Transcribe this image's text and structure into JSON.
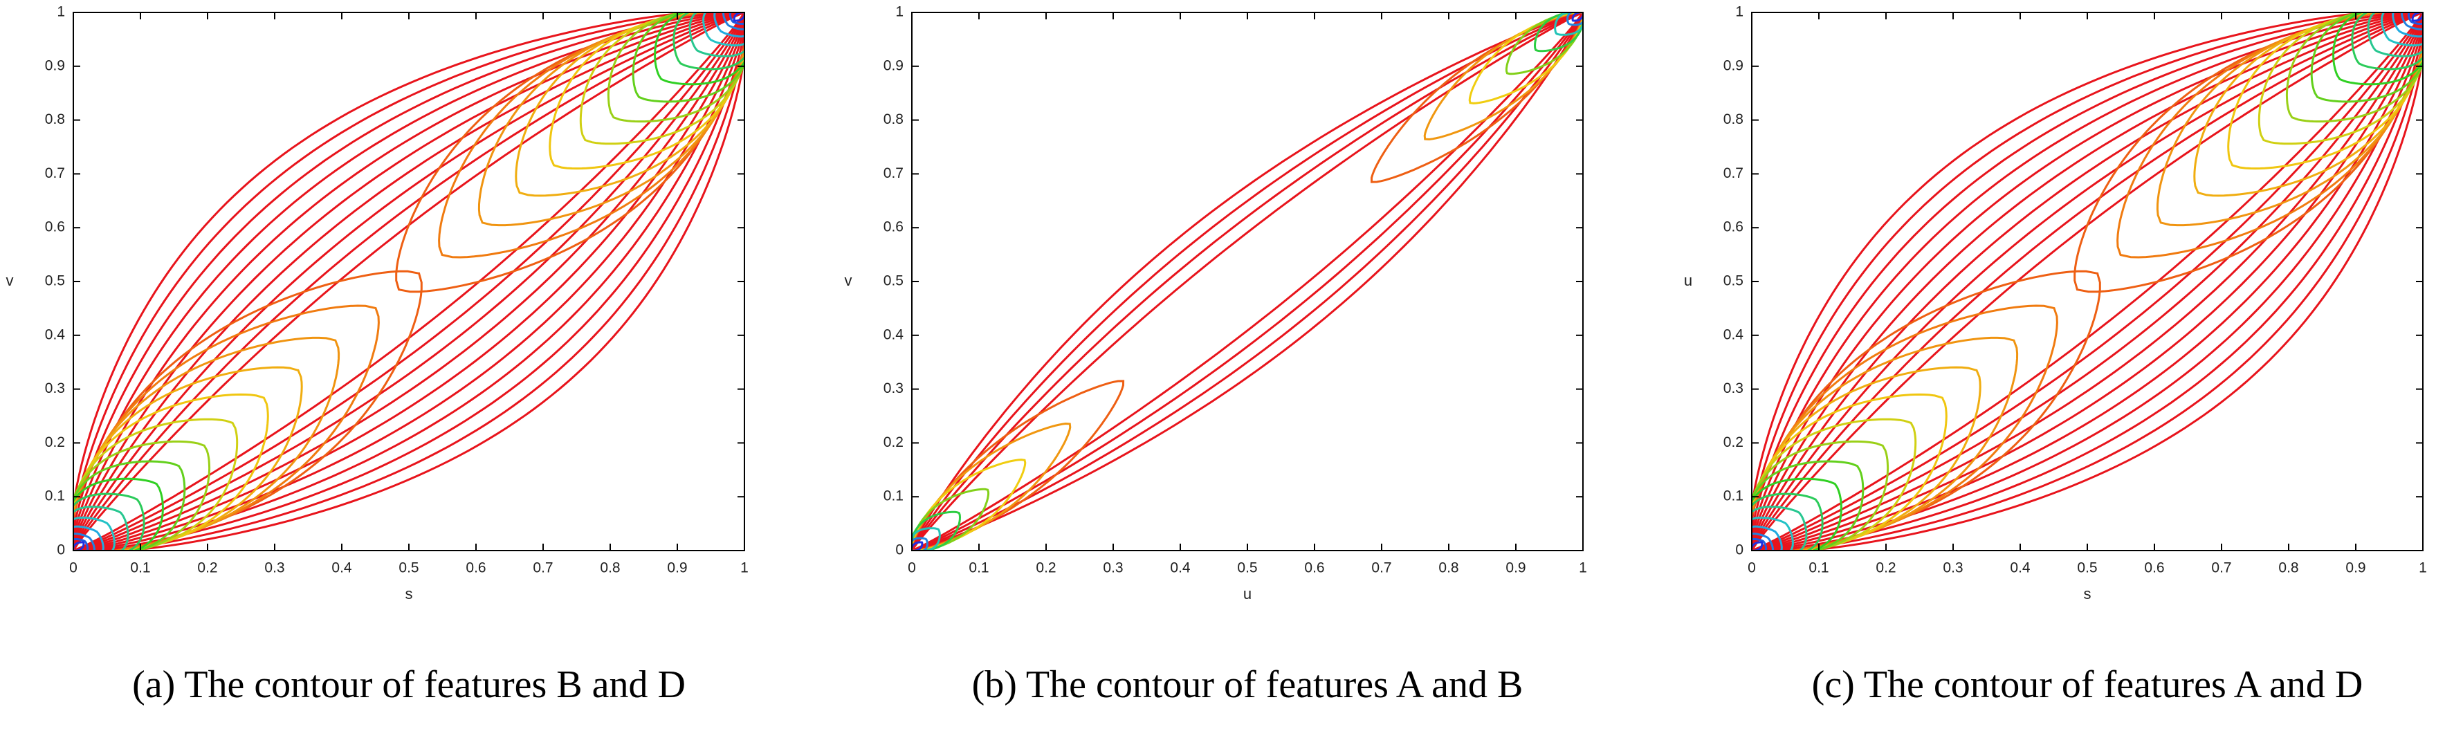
{
  "chart_data": [
    {
      "type": "contour",
      "xlabel": "s",
      "ylabel": "v",
      "caption": "(a) The contour of features B and D",
      "xlim": [
        0,
        1
      ],
      "ylim": [
        0,
        1
      ],
      "xticks": [
        0,
        0.1,
        0.2,
        0.3,
        0.4,
        0.5,
        0.6,
        0.7,
        0.8,
        0.9,
        1
      ],
      "yticks": [
        0,
        0.1,
        0.2,
        0.3,
        0.4,
        0.5,
        0.6,
        0.7,
        0.8,
        0.9,
        1
      ],
      "colors": [
        "#e8141c",
        "#f07810",
        "#f0d010",
        "#30d020",
        "#20c0e0",
        "#2030e0"
      ]
    },
    {
      "type": "contour",
      "xlabel": "u",
      "ylabel": "v",
      "caption": "(b) The contour of features A and B",
      "xlim": [
        0,
        1
      ],
      "ylim": [
        0,
        1
      ],
      "xticks": [
        0,
        0.1,
        0.2,
        0.3,
        0.4,
        0.5,
        0.6,
        0.7,
        0.8,
        0.9,
        1
      ],
      "yticks": [
        0,
        0.1,
        0.2,
        0.3,
        0.4,
        0.5,
        0.6,
        0.7,
        0.8,
        0.9,
        1
      ],
      "colors": [
        "#e8141c",
        "#f07810",
        "#f0d010",
        "#30d020",
        "#20c0e0",
        "#2030e0"
      ]
    },
    {
      "type": "contour",
      "xlabel": "s",
      "ylabel": "u",
      "caption": "(c) The contour of features A and D",
      "xlim": [
        0,
        1
      ],
      "ylim": [
        0,
        1
      ],
      "xticks": [
        0,
        0.1,
        0.2,
        0.3,
        0.4,
        0.5,
        0.6,
        0.7,
        0.8,
        0.9,
        1
      ],
      "yticks": [
        0,
        0.1,
        0.2,
        0.3,
        0.4,
        0.5,
        0.6,
        0.7,
        0.8,
        0.9,
        1
      ],
      "colors": [
        "#e8141c",
        "#f07810",
        "#f0d010",
        "#30d020",
        "#20c0e0",
        "#2030e0"
      ]
    }
  ]
}
